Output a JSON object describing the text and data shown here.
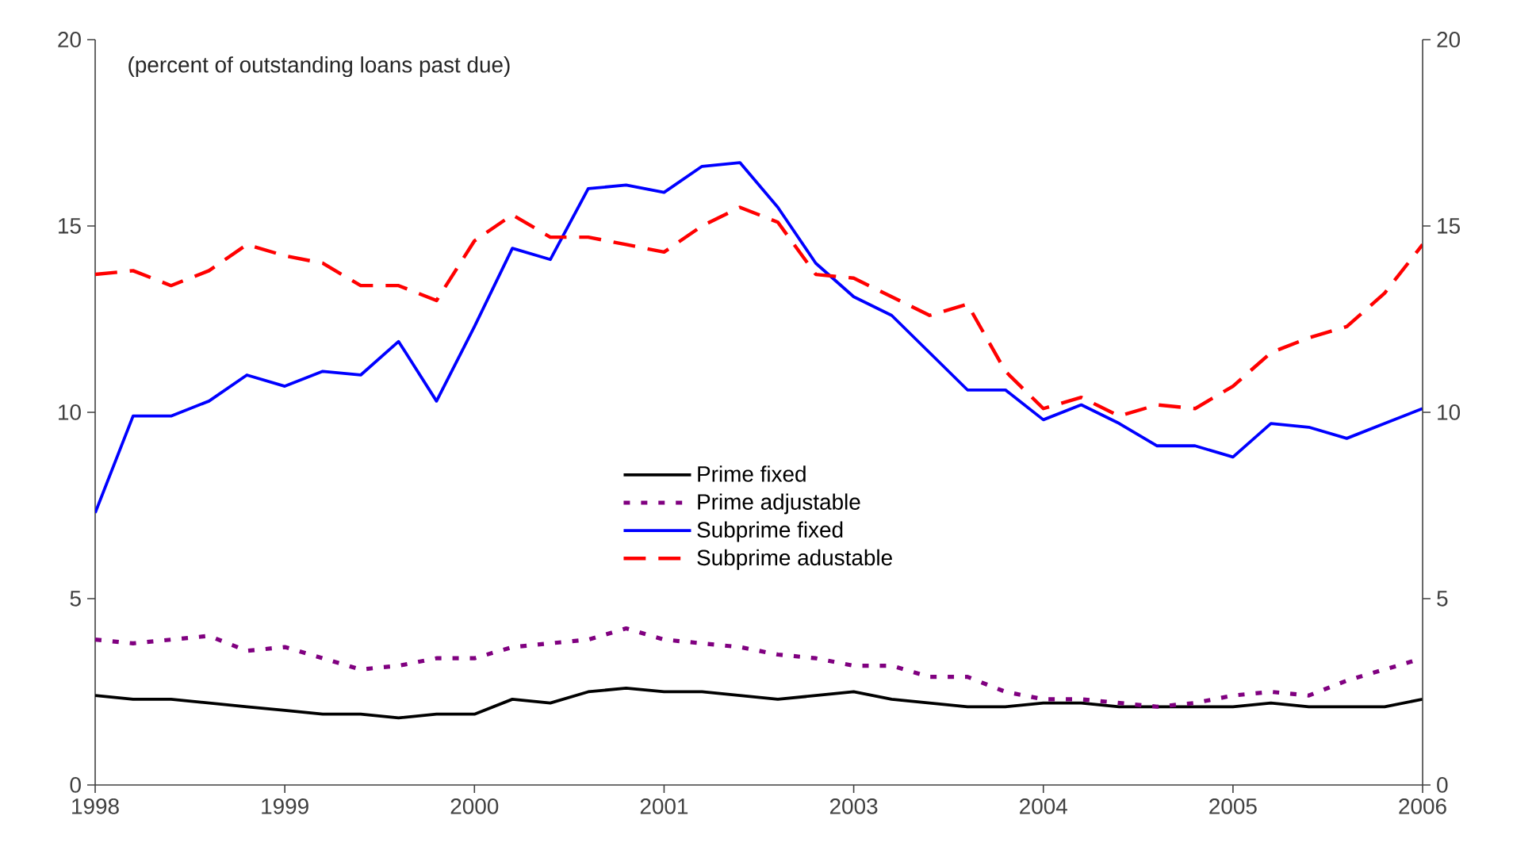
{
  "chart_data": {
    "type": "line",
    "annotations": [
      "(percent of outstanding loans past due)"
    ],
    "categories": [
      "1998",
      null,
      null,
      null,
      null,
      "1999",
      null,
      null,
      null,
      null,
      "2000",
      null,
      null,
      null,
      null,
      "2001",
      null,
      null,
      null,
      null,
      "2003",
      null,
      null,
      null,
      null,
      "2004",
      null,
      null,
      null,
      null,
      "2005",
      null,
      null,
      null,
      null,
      "2006"
    ],
    "ylim": [
      0,
      20
    ],
    "yticks": [
      0,
      5,
      10,
      15,
      20
    ],
    "y2lim": [
      0,
      20
    ],
    "y2ticks": [
      0,
      5,
      10,
      15,
      20
    ],
    "legend": "center",
    "marker": "none",
    "series": [
      {
        "name": "Prime fixed",
        "color": "#000000",
        "line_style": "solid",
        "values": [
          2.4,
          2.3,
          2.3,
          2.2,
          2.1,
          2.0,
          1.9,
          1.9,
          1.8,
          1.9,
          1.9,
          2.3,
          2.2,
          2.5,
          2.6,
          2.5,
          2.5,
          2.4,
          2.3,
          2.4,
          2.5,
          2.3,
          2.2,
          2.1,
          2.1,
          2.2,
          2.2,
          2.1,
          2.1,
          2.1,
          2.1,
          2.2,
          2.1,
          2.1,
          2.1,
          2.3
        ]
      },
      {
        "name": "Prime adjustable",
        "color": "#800080",
        "line_style": "dotted",
        "values": [
          3.9,
          3.8,
          3.9,
          4.0,
          3.6,
          3.7,
          3.4,
          3.1,
          3.2,
          3.4,
          3.4,
          3.7,
          3.8,
          3.9,
          4.2,
          3.9,
          3.8,
          3.7,
          3.5,
          3.4,
          3.2,
          3.2,
          2.9,
          2.9,
          2.5,
          2.3,
          2.3,
          2.2,
          2.1,
          2.2,
          2.4,
          2.5,
          2.4,
          2.8,
          3.1,
          3.4
        ]
      },
      {
        "name": "Subprime fixed",
        "color": "#0000ff",
        "line_style": "solid",
        "values": [
          7.3,
          9.9,
          9.9,
          10.3,
          11.0,
          10.7,
          11.1,
          11.0,
          11.9,
          10.3,
          12.3,
          14.4,
          14.1,
          16.0,
          16.1,
          15.9,
          16.6,
          16.7,
          15.5,
          14.0,
          13.1,
          12.6,
          11.6,
          10.6,
          10.6,
          9.8,
          10.2,
          9.7,
          9.1,
          9.1,
          8.8,
          9.7,
          9.6,
          9.3,
          9.7,
          10.1
        ]
      },
      {
        "name": "Subprime adustable",
        "color": "#ff0000",
        "line_style": "dashed",
        "values": [
          13.7,
          13.8,
          13.4,
          13.8,
          14.5,
          14.2,
          14.0,
          13.4,
          13.4,
          13.0,
          14.6,
          15.3,
          14.7,
          14.7,
          14.5,
          14.3,
          15.0,
          15.5,
          15.1,
          13.7,
          13.6,
          13.1,
          12.6,
          12.9,
          11.1,
          10.1,
          10.4,
          9.9,
          10.2,
          10.1,
          10.7,
          11.6,
          12.0,
          12.3,
          13.2,
          14.5
        ]
      }
    ]
  }
}
